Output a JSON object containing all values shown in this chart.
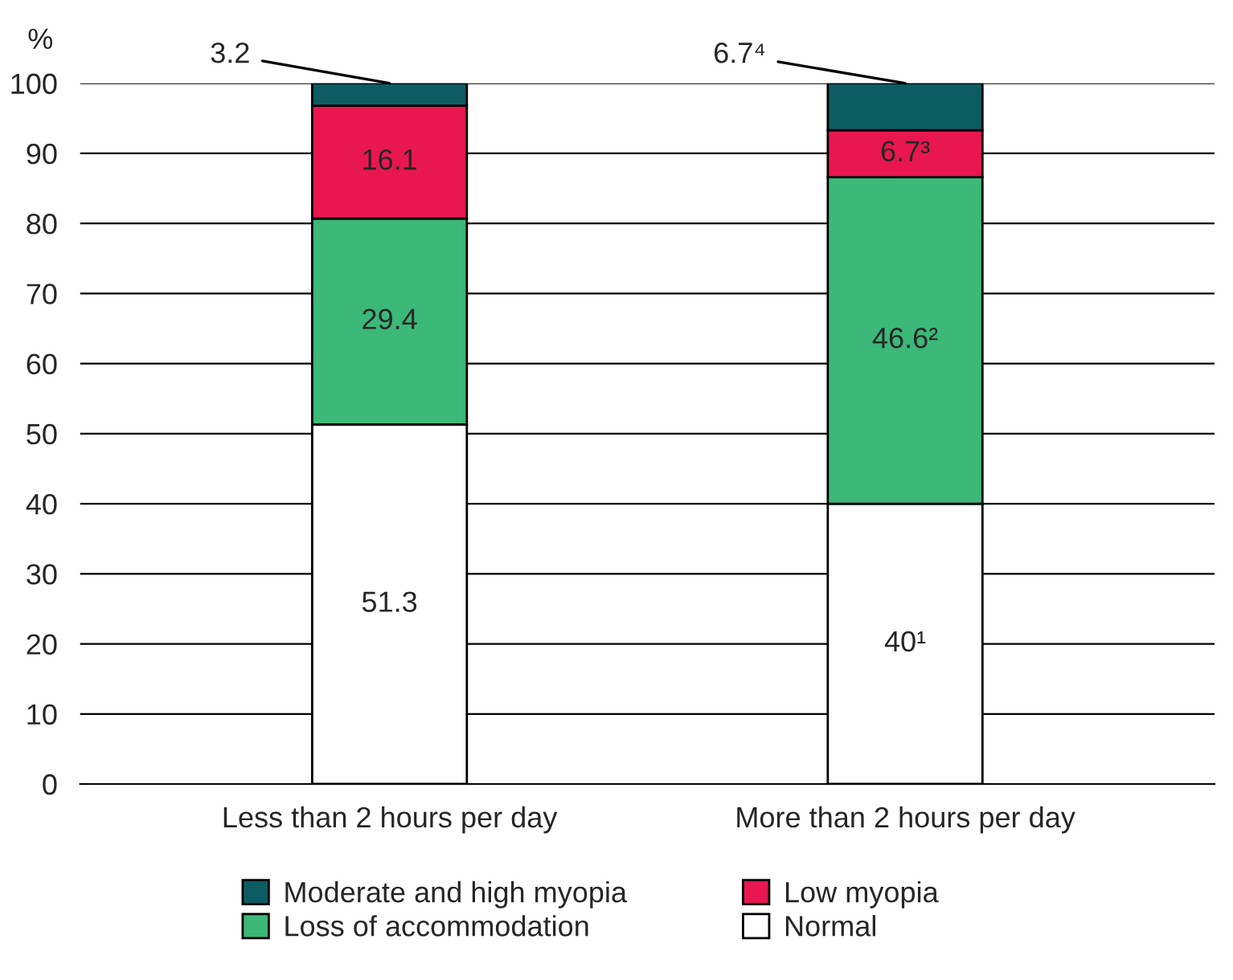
{
  "chart_data": {
    "type": "bar",
    "stacked": true,
    "ylabel": "%",
    "categories": [
      "Less than 2 hours per day",
      "More than 2 hours per day"
    ],
    "series": [
      {
        "name": "Normal",
        "color": "#ffffff",
        "values": [
          51.3,
          40
        ],
        "value_labels": [
          "51.3",
          "40¹"
        ]
      },
      {
        "name": "Loss of accommodation",
        "color": "#3cb878",
        "values": [
          29.4,
          46.6
        ],
        "value_labels": [
          "29.4",
          "46.6²"
        ]
      },
      {
        "name": "Low myopia",
        "color": "#e8174f",
        "values": [
          16.1,
          6.7
        ],
        "value_labels": [
          "16.1",
          "6.7³"
        ]
      },
      {
        "name": "Moderate and high myopia",
        "color": "#0d5c63",
        "values": [
          3.2,
          6.7
        ],
        "value_labels": [
          "3.2",
          "6.7⁴"
        ]
      }
    ],
    "ylim": [
      0,
      100
    ],
    "yticks": [
      0,
      10,
      20,
      30,
      40,
      50,
      60,
      70,
      80,
      90,
      100
    ],
    "grid": "y",
    "legend": "bottom"
  }
}
